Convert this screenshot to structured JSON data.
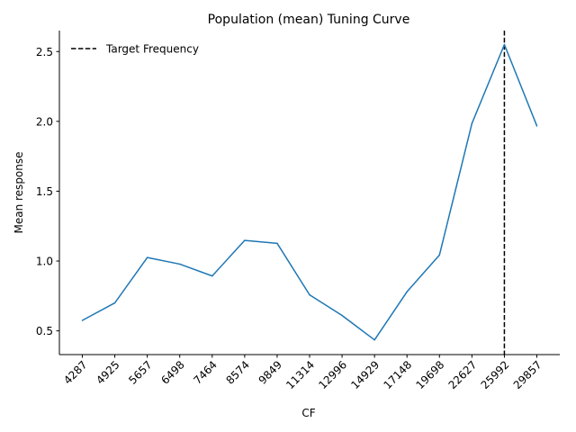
{
  "chart_data": {
    "type": "line",
    "title": "Population (mean) Tuning Curve",
    "xlabel": "CF",
    "ylabel": "Mean response",
    "categories": [
      "4287",
      "4925",
      "5657",
      "6498",
      "7464",
      "8574",
      "9849",
      "11314",
      "12996",
      "14929",
      "17148",
      "19698",
      "22627",
      "25992",
      "29857"
    ],
    "series": [
      {
        "color": "#1f77b4",
        "values": [
          0.575,
          0.7,
          1.025,
          0.978,
          0.893,
          1.148,
          1.127,
          0.758,
          0.61,
          0.435,
          0.78,
          1.043,
          1.985,
          2.55,
          1.968
        ]
      }
    ],
    "target_line": {
      "name": "Target Frequency",
      "category": "25992",
      "color": "#000000",
      "style": "dashed"
    },
    "yticks": [
      "0.5",
      "1.0",
      "1.5",
      "2.0",
      "2.5"
    ],
    "ylim": [
      0.33,
      2.65
    ],
    "grid": false,
    "legend": "top-left"
  }
}
